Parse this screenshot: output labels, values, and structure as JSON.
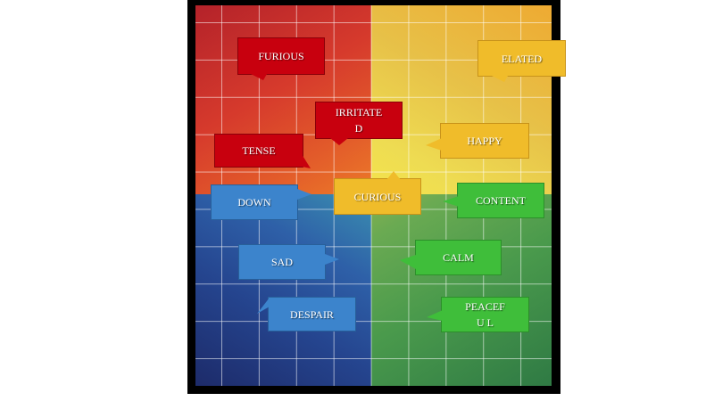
{
  "colors": {
    "red": "#c8000e",
    "yellow": "#f0bc2a",
    "blue": "#3c84cc",
    "green": "#3fbe3a",
    "frame": "#000000"
  },
  "emotions": {
    "furious": "FURIOUS",
    "elated": "ELATED",
    "irritated": "IRRITATE D",
    "tense": "TENSE",
    "happy": "HAPPY",
    "down": "DOWN",
    "curious": "CURIOUS",
    "content": "CONTENT",
    "sad": "SAD",
    "calm": "CALM",
    "despair": "DESPAIR",
    "peaceful": "PEACEFU L"
  }
}
